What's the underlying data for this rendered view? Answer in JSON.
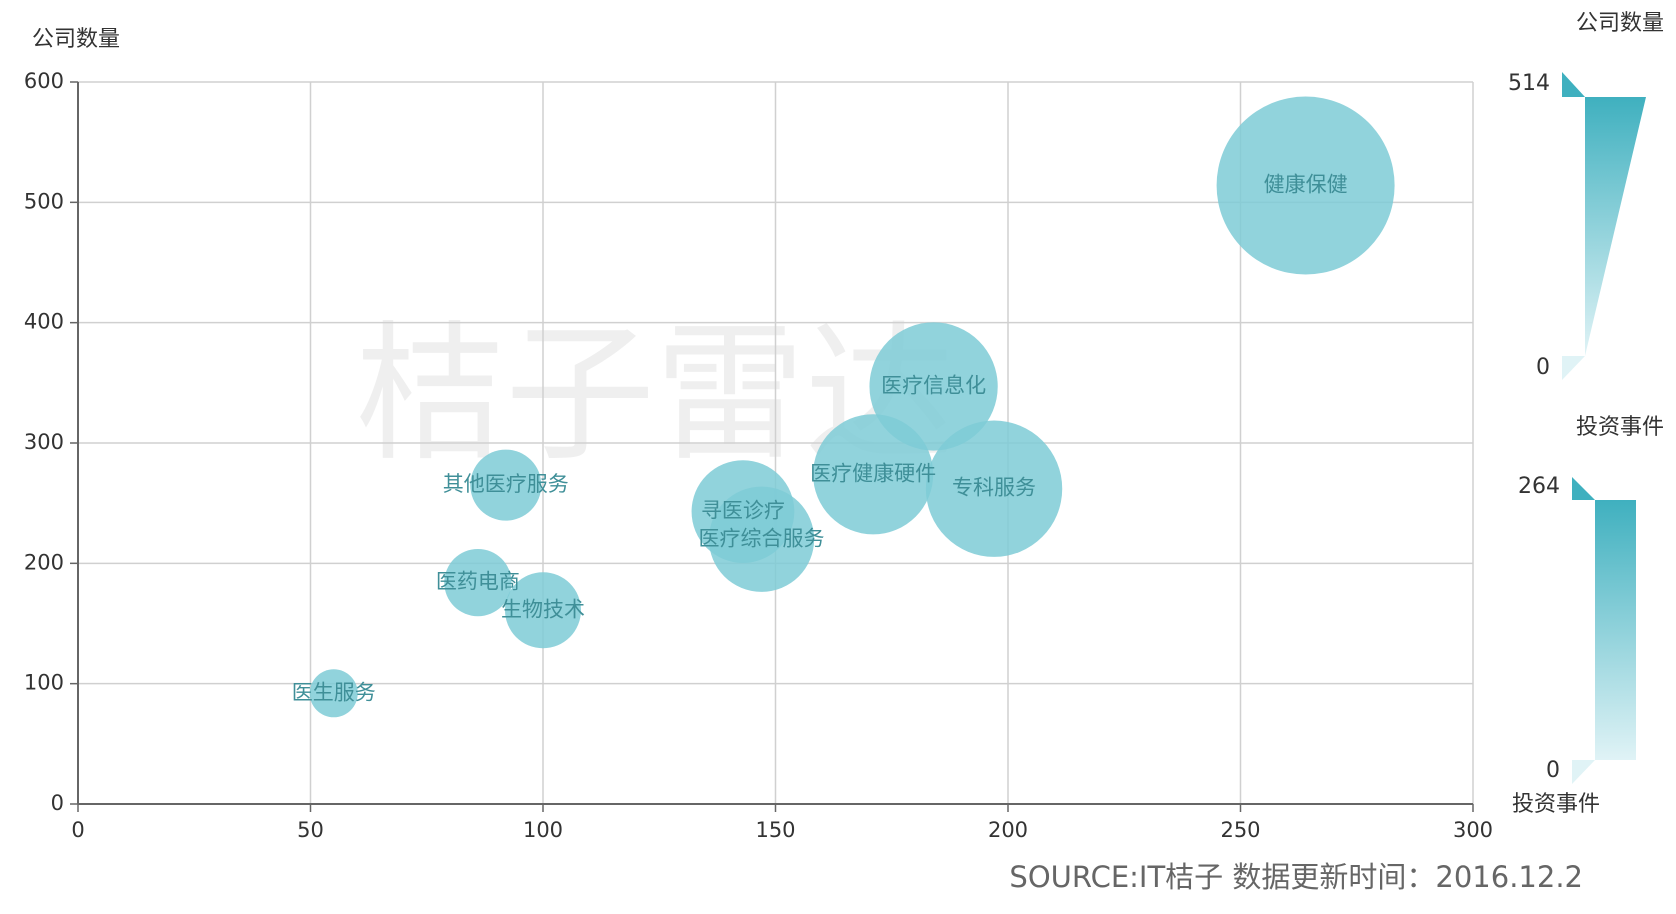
{
  "chart_data": {
    "type": "bubble",
    "y_axis_title": "公司数量",
    "watermark": "桔子雷达",
    "source": "SOURCE:IT桔子 数据更新时间：2016.12.2",
    "color": "#7ecbd6",
    "names": [
      "健康保健",
      "医疗信息化",
      "医疗健康硬件",
      "专科服务",
      "其他医疗服务",
      "寻医诊疗",
      "医疗综合服务",
      "医药电商",
      "生物技术",
      "医生服务"
    ],
    "x": [
      264,
      184,
      171,
      197,
      92,
      143,
      147,
      86,
      100,
      55
    ],
    "y": [
      514,
      347,
      274,
      262,
      265,
      243,
      220,
      184,
      161,
      92
    ],
    "xlim": [
      0,
      300
    ],
    "xticks": [
      0,
      50,
      100,
      150,
      200,
      250,
      300
    ],
    "ylim": [
      0,
      600
    ],
    "yticks": [
      0,
      100,
      200,
      300,
      400,
      500,
      600
    ],
    "grid": true,
    "visual_maps": [
      {
        "title": "公司数量",
        "range": [
          0,
          514
        ],
        "colors": [
          "#e0f3f6",
          "#3fb0bf"
        ]
      },
      {
        "title": "投资事件",
        "bottom_title": "投资事件",
        "range": [
          0,
          264
        ],
        "colors": [
          "#e0f3f6",
          "#3fb0bf"
        ]
      }
    ]
  }
}
